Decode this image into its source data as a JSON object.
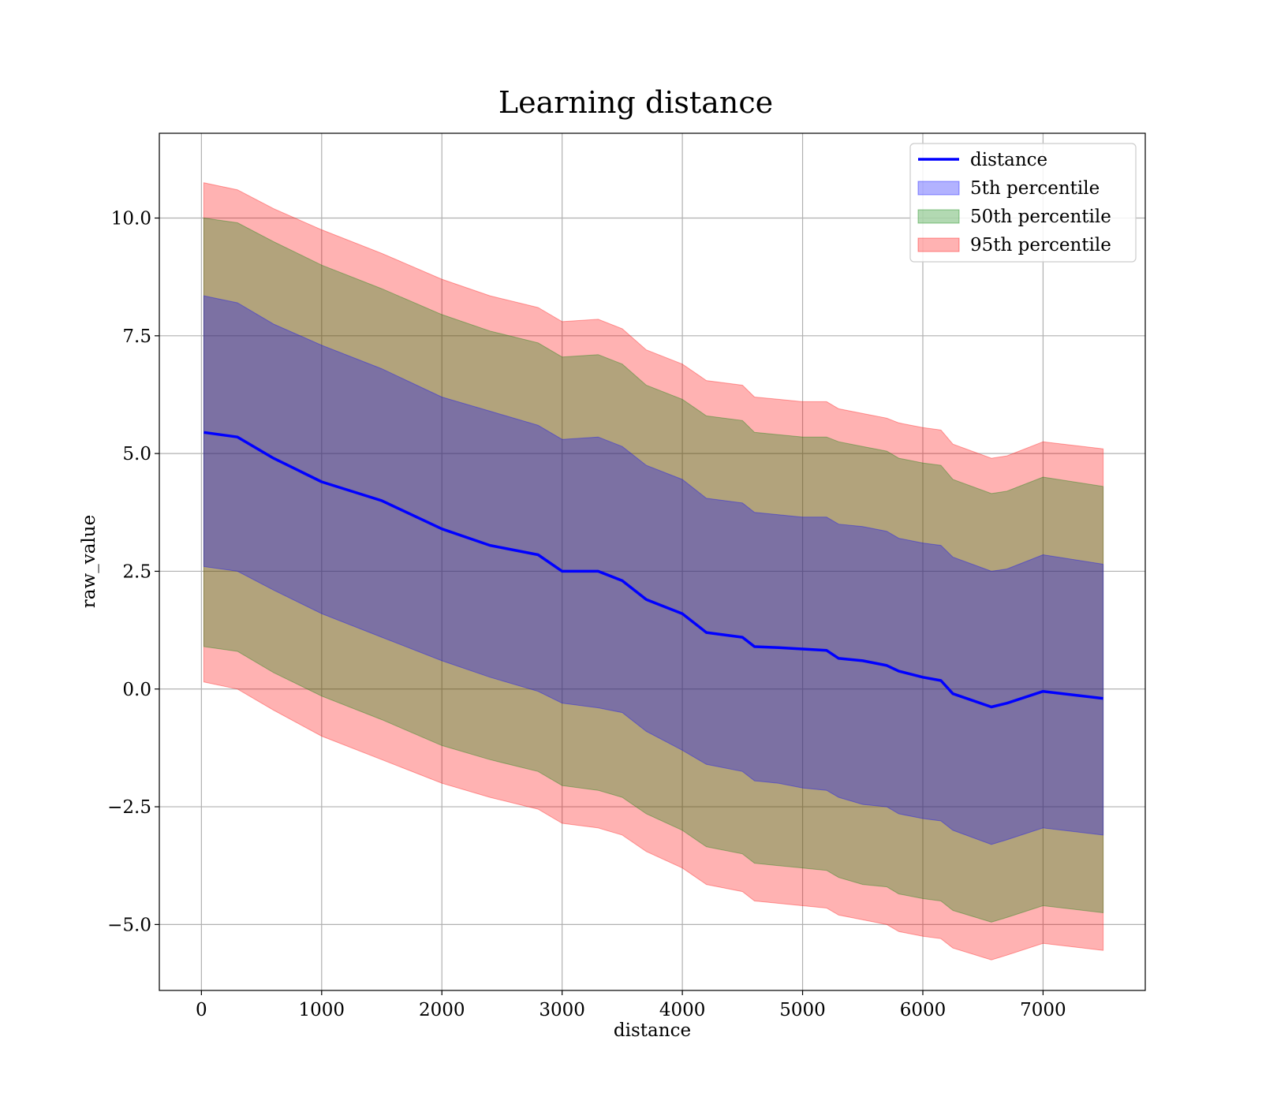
{
  "chart_data": {
    "type": "area",
    "title": "Learning distance",
    "xlabel": "distance",
    "ylabel": "raw_value",
    "xlim": [
      -350,
      7850
    ],
    "ylim": [
      -6.4,
      11.8
    ],
    "x_ticks": [
      0,
      1000,
      2000,
      3000,
      4000,
      5000,
      6000,
      7000
    ],
    "x_tick_labels": [
      "0",
      "1000",
      "2000",
      "3000",
      "4000",
      "5000",
      "6000",
      "7000"
    ],
    "y_ticks": [
      -5.0,
      -2.5,
      0.0,
      2.5,
      5.0,
      7.5,
      10.0
    ],
    "y_tick_labels": [
      "−5.0",
      "−2.5",
      "0.0",
      "2.5",
      "5.0",
      "7.5",
      "10.0"
    ],
    "grid": true,
    "legend_position": "top-right",
    "x": [
      20,
      300,
      600,
      1000,
      1500,
      2000,
      2400,
      2800,
      3000,
      3300,
      3500,
      3700,
      4000,
      4200,
      4500,
      4600,
      4800,
      5000,
      5200,
      5300,
      5500,
      5700,
      5800,
      6000,
      6150,
      6250,
      6570,
      6700,
      7000,
      7500
    ],
    "series": [
      {
        "name": "distance",
        "kind": "line",
        "color": "#0000ff",
        "values": [
          5.45,
          5.35,
          4.9,
          4.4,
          4.0,
          3.4,
          3.05,
          2.85,
          2.5,
          2.5,
          2.3,
          1.9,
          1.6,
          1.2,
          1.1,
          0.9,
          0.88,
          0.85,
          0.82,
          0.65,
          0.6,
          0.5,
          0.38,
          0.25,
          0.18,
          -0.1,
          -0.38,
          -0.3,
          -0.05,
          -0.2
        ]
      },
      {
        "name": "5th percentile",
        "kind": "band",
        "color": "#0000ff",
        "lower": [
          2.6,
          2.5,
          2.1,
          1.6,
          1.1,
          0.6,
          0.25,
          -0.05,
          -0.3,
          -0.4,
          -0.5,
          -0.9,
          -1.3,
          -1.6,
          -1.75,
          -1.95,
          -2.0,
          -2.1,
          -2.15,
          -2.3,
          -2.45,
          -2.5,
          -2.65,
          -2.75,
          -2.8,
          -3.0,
          -3.3,
          -3.2,
          -2.95,
          -3.1
        ],
        "upper": [
          8.35,
          8.2,
          7.75,
          7.3,
          6.8,
          6.2,
          5.9,
          5.6,
          5.3,
          5.35,
          5.15,
          4.75,
          4.45,
          4.05,
          3.95,
          3.75,
          3.7,
          3.65,
          3.65,
          3.5,
          3.45,
          3.35,
          3.2,
          3.1,
          3.05,
          2.8,
          2.5,
          2.55,
          2.85,
          2.65
        ]
      },
      {
        "name": "50th percentile",
        "kind": "band",
        "color": "#008000",
        "lower": [
          0.9,
          0.8,
          0.35,
          -0.15,
          -0.65,
          -1.2,
          -1.5,
          -1.75,
          -2.05,
          -2.15,
          -2.3,
          -2.65,
          -3.0,
          -3.35,
          -3.5,
          -3.7,
          -3.75,
          -3.8,
          -3.85,
          -4.0,
          -4.15,
          -4.2,
          -4.35,
          -4.45,
          -4.5,
          -4.7,
          -4.95,
          -4.85,
          -4.6,
          -4.75
        ],
        "upper": [
          10.0,
          9.9,
          9.5,
          9.0,
          8.5,
          7.95,
          7.6,
          7.35,
          7.05,
          7.1,
          6.9,
          6.45,
          6.15,
          5.8,
          5.7,
          5.45,
          5.4,
          5.35,
          5.35,
          5.25,
          5.15,
          5.05,
          4.9,
          4.8,
          4.75,
          4.45,
          4.15,
          4.2,
          4.5,
          4.3
        ]
      },
      {
        "name": "95th percentile",
        "kind": "band",
        "color": "#ff0000",
        "lower": [
          0.15,
          0.0,
          -0.45,
          -1.0,
          -1.5,
          -2.0,
          -2.3,
          -2.55,
          -2.85,
          -2.95,
          -3.1,
          -3.45,
          -3.8,
          -4.15,
          -4.3,
          -4.5,
          -4.55,
          -4.6,
          -4.65,
          -4.8,
          -4.9,
          -5.0,
          -5.15,
          -5.25,
          -5.3,
          -5.5,
          -5.75,
          -5.65,
          -5.4,
          -5.55
        ],
        "upper": [
          10.75,
          10.6,
          10.2,
          9.75,
          9.25,
          8.7,
          8.35,
          8.1,
          7.8,
          7.85,
          7.65,
          7.2,
          6.9,
          6.55,
          6.45,
          6.2,
          6.15,
          6.1,
          6.1,
          5.95,
          5.85,
          5.75,
          5.65,
          5.55,
          5.5,
          5.2,
          4.9,
          4.95,
          5.25,
          5.1
        ]
      }
    ]
  }
}
